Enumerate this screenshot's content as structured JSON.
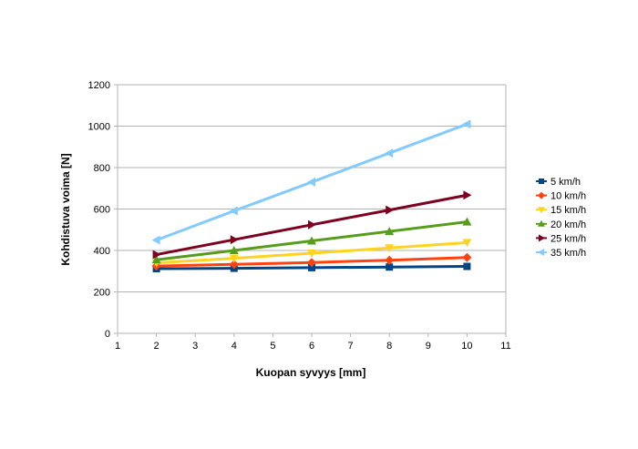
{
  "chart_data": {
    "type": "line",
    "xlabel": "Kuopan syvyys [mm]",
    "ylabel": "Kohdistuva voima [N]",
    "xlim": [
      1,
      11
    ],
    "ylim": [
      0,
      1200
    ],
    "x_ticks": [
      "1",
      "2",
      "3",
      "4",
      "5",
      "6",
      "7",
      "8",
      "9",
      "10",
      "11"
    ],
    "y_ticks": [
      "0",
      "200",
      "400",
      "600",
      "800",
      "1000",
      "1200"
    ],
    "grid": "horizontal",
    "legend_position": "right",
    "x": [
      2,
      4,
      6,
      8,
      10
    ],
    "series": [
      {
        "name": "5 km/h",
        "color": "#004586",
        "marker": "square",
        "values": [
          312,
          314,
          317,
          320,
          323
        ]
      },
      {
        "name": "10 km/h",
        "color": "#ff420e",
        "marker": "diamond",
        "values": [
          325,
          333,
          342,
          353,
          366
        ]
      },
      {
        "name": "15 km/h",
        "color": "#ffd320",
        "marker": "triangle-down",
        "values": [
          340,
          362,
          387,
          412,
          438
        ]
      },
      {
        "name": "20 km/h",
        "color": "#579d1c",
        "marker": "triangle-up",
        "values": [
          355,
          400,
          446,
          492,
          538
        ]
      },
      {
        "name": "25 km/h",
        "color": "#7e0021",
        "marker": "triangle-right",
        "values": [
          380,
          452,
          524,
          595,
          667
        ]
      },
      {
        "name": "35 km/h",
        "color": "#83caff",
        "marker": "triangle-left",
        "values": [
          450,
          591,
          730,
          870,
          1010
        ]
      }
    ]
  }
}
